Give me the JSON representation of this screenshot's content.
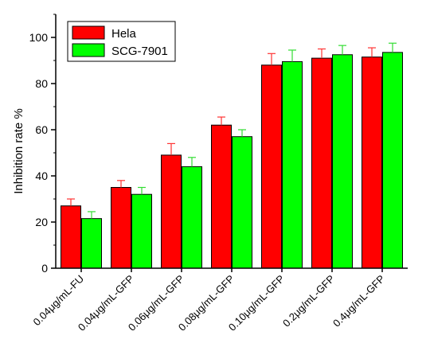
{
  "chart_data": {
    "type": "bar",
    "categories": [
      "0.04μg/mL-FU",
      "0.04μg/mL-GFP",
      "0.06μg/mL-GFP",
      "0.08μg/mL-GFP",
      "0.10μg/mL-GFP",
      "0.2μg/mL-GFP",
      "0.4μg/mL-GFP"
    ],
    "series": [
      {
        "name": "Hela",
        "color": "#ff0000",
        "values": [
          27,
          35,
          49,
          62,
          88,
          91,
          91.5
        ],
        "errors": [
          3,
          3,
          5,
          3.5,
          5,
          4,
          4
        ]
      },
      {
        "name": "SCG-7901",
        "color": "#00ff00",
        "values": [
          21.5,
          32,
          44,
          57,
          89.5,
          92.5,
          93.5
        ],
        "errors": [
          3,
          3,
          4,
          3,
          5,
          4,
          4
        ]
      }
    ],
    "title": "",
    "xlabel": "",
    "ylabel": "Inhibition rate %",
    "ylim": [
      0,
      110
    ],
    "yticks": [
      0,
      20,
      40,
      60,
      80,
      100
    ],
    "grid": false,
    "legend_position": "top-left"
  }
}
